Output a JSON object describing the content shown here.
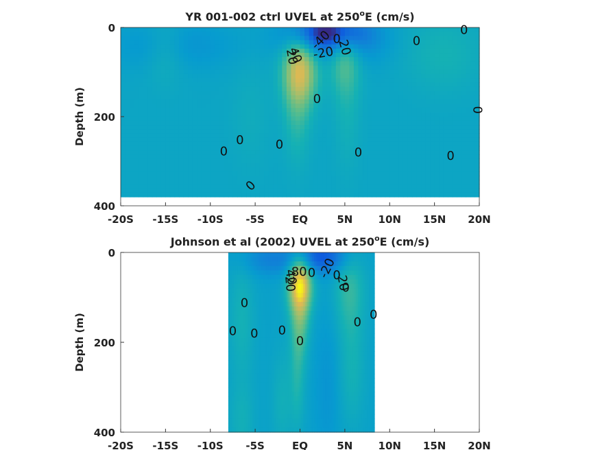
{
  "chart_data": [
    {
      "type": "heatmap",
      "title": "YR 001-002 ctrl UVEL at 250",
      "title_sup": "o",
      "title_tail": "E (cm/s)",
      "ylabel": "Depth (m)",
      "xlim": [
        -20,
        20
      ],
      "ylim": [
        0,
        400
      ],
      "x_ticks": [
        -20,
        -15,
        -10,
        -5,
        0,
        5,
        10,
        15,
        20
      ],
      "x_tick_labels": [
        "-20S",
        "-15S",
        "-10S",
        "-5S",
        "EQ",
        "5N",
        "10N",
        "15N",
        "20N"
      ],
      "y_ticks": [
        0,
        200,
        400
      ],
      "y_tick_labels": [
        "0",
        "200",
        "400"
      ],
      "data_x_range": [
        -20,
        20
      ],
      "data_depth_range": [
        0,
        380
      ],
      "background_value": 0,
      "features": [
        {
          "x": 0.0,
          "depth": 95,
          "sx": 1.3,
          "sd": 55,
          "v": 55
        },
        {
          "x": -0.3,
          "depth": 190,
          "sx": 1.0,
          "sd": 80,
          "v": 15
        },
        {
          "x": 3.5,
          "depth": 10,
          "sx": 2.5,
          "sd": 25,
          "v": -45
        },
        {
          "x": 2.0,
          "depth": 20,
          "sx": 3.0,
          "sd": 35,
          "v": -25
        },
        {
          "x": -14,
          "depth": 40,
          "sx": 5,
          "sd": 40,
          "v": -12
        },
        {
          "x": 7,
          "depth": 30,
          "sx": 2.5,
          "sd": 40,
          "v": -12
        },
        {
          "x": 5,
          "depth": 60,
          "sx": 1.2,
          "sd": 60,
          "v": 28
        },
        {
          "x": 5.3,
          "depth": 200,
          "sx": 1.0,
          "sd": 90,
          "v": 8
        },
        {
          "x": -15,
          "depth": 50,
          "sx": 1.5,
          "sd": 50,
          "v": 12
        },
        {
          "x": -5.5,
          "depth": 200,
          "sx": 1.5,
          "sd": 90,
          "v": 5
        },
        {
          "x": 16,
          "depth": 60,
          "sx": 3,
          "sd": 60,
          "v": 10
        }
      ],
      "contour_labels": [
        {
          "text": "0",
          "x": 18.3,
          "depth": 5,
          "rotate": 0
        },
        {
          "text": "-40",
          "x": 2.3,
          "depth": 28,
          "rotate": -45
        },
        {
          "text": "0",
          "x": 4.1,
          "depth": 25,
          "rotate": 0
        },
        {
          "text": "20",
          "x": 5.0,
          "depth": 45,
          "rotate": 75
        },
        {
          "text": "-20",
          "x": 2.6,
          "depth": 57,
          "rotate": -10
        },
        {
          "text": "40",
          "x": -0.5,
          "depth": 62,
          "rotate": 70
        },
        {
          "text": "20",
          "x": -0.9,
          "depth": 66,
          "rotate": 80
        },
        {
          "text": "0",
          "x": 13.0,
          "depth": 30,
          "rotate": 0
        },
        {
          "text": "0",
          "x": 1.9,
          "depth": 160,
          "rotate": 0
        },
        {
          "text": "0",
          "x": 19.8,
          "depth": 185,
          "rotate": 90
        },
        {
          "text": "0",
          "x": -6.7,
          "depth": 252,
          "rotate": 0
        },
        {
          "text": "0",
          "x": -2.3,
          "depth": 262,
          "rotate": 0
        },
        {
          "text": "0",
          "x": -8.5,
          "depth": 278,
          "rotate": 0
        },
        {
          "text": "0",
          "x": 6.5,
          "depth": 280,
          "rotate": 0
        },
        {
          "text": "0",
          "x": 16.8,
          "depth": 288,
          "rotate": 0
        },
        {
          "text": "0",
          "x": -5.5,
          "depth": 355,
          "rotate": -45
        }
      ]
    },
    {
      "type": "heatmap",
      "title": "Johnson et al (2002) UVEL at 250",
      "title_sup": "o",
      "title_tail": "E (cm/s)",
      "ylabel": "Depth (m)",
      "xlim": [
        -20,
        20
      ],
      "ylim": [
        0,
        400
      ],
      "x_ticks": [
        -20,
        -15,
        -10,
        -5,
        0,
        5,
        10,
        15,
        20
      ],
      "x_tick_labels": [
        "-20S",
        "-15S",
        "-10S",
        "-5S",
        "EQ",
        "5N",
        "10N",
        "15N",
        "20N"
      ],
      "y_ticks": [
        0,
        200,
        400
      ],
      "y_tick_labels": [
        "0",
        "200",
        "400"
      ],
      "data_x_range": [
        -8,
        8.3
      ],
      "data_depth_range": [
        0,
        400
      ],
      "background_value": -3,
      "features": [
        {
          "x": 0.0,
          "depth": 70,
          "sx": 0.9,
          "sd": 45,
          "v": 75
        },
        {
          "x": 0.0,
          "depth": 160,
          "sx": 0.7,
          "sd": 55,
          "v": 25
        },
        {
          "x": 2.5,
          "depth": 10,
          "sx": 2.0,
          "sd": 25,
          "v": -40
        },
        {
          "x": -3,
          "depth": 15,
          "sx": 2.5,
          "sd": 25,
          "v": -20
        },
        {
          "x": 5.5,
          "depth": 80,
          "sx": 1.2,
          "sd": 70,
          "v": 20
        },
        {
          "x": 5.8,
          "depth": 260,
          "sx": 1.0,
          "sd": 90,
          "v": 12
        },
        {
          "x": -6.5,
          "depth": 150,
          "sx": 1.0,
          "sd": 100,
          "v": 12
        },
        {
          "x": -6.5,
          "depth": 380,
          "sx": 1.0,
          "sd": 60,
          "v": 10
        },
        {
          "x": -2.0,
          "depth": 330,
          "sx": 0.8,
          "sd": 80,
          "v": 10
        },
        {
          "x": -0.3,
          "depth": 280,
          "sx": 0.6,
          "sd": 80,
          "v": 15
        },
        {
          "x": 3.0,
          "depth": 300,
          "sx": 1.0,
          "sd": 120,
          "v": -8
        }
      ],
      "contour_labels": [
        {
          "text": "-20",
          "x": 3.0,
          "depth": 35,
          "rotate": -65
        },
        {
          "text": "80",
          "x": -0.1,
          "depth": 43,
          "rotate": 0
        },
        {
          "text": "40",
          "x": -1.0,
          "depth": 55,
          "rotate": 80
        },
        {
          "text": "20",
          "x": -1.1,
          "depth": 70,
          "rotate": 85
        },
        {
          "text": "0",
          "x": 1.3,
          "depth": 45,
          "rotate": 0
        },
        {
          "text": "0",
          "x": 4.1,
          "depth": 50,
          "rotate": 0
        },
        {
          "text": "20",
          "x": 4.8,
          "depth": 68,
          "rotate": 80
        },
        {
          "text": "0",
          "x": 5.1,
          "depth": 78,
          "rotate": 0
        },
        {
          "text": "0",
          "x": -6.2,
          "depth": 112,
          "rotate": 0
        },
        {
          "text": "0",
          "x": 8.2,
          "depth": 138,
          "rotate": 0
        },
        {
          "text": "0",
          "x": 6.4,
          "depth": 155,
          "rotate": 0
        },
        {
          "text": "0",
          "x": -2.0,
          "depth": 173,
          "rotate": 0
        },
        {
          "text": "0",
          "x": -7.5,
          "depth": 175,
          "rotate": 0
        },
        {
          "text": "0",
          "x": -5.1,
          "depth": 180,
          "rotate": 0
        },
        {
          "text": "0",
          "x": 0.0,
          "depth": 197,
          "rotate": 0
        }
      ]
    }
  ]
}
